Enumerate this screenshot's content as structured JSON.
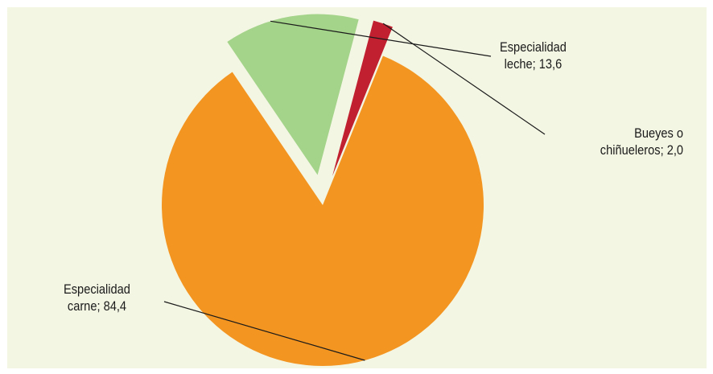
{
  "chart_data": {
    "type": "pie",
    "series": [
      {
        "values": [
          84.4,
          13.6,
          2.0
        ],
        "categories": [
          "Especialidad carne",
          "Especialidad leche",
          "Bueyes o chiñueleros"
        ]
      }
    ],
    "labels": [
      {
        "line1": "Especialidad",
        "line2": "carne;  84,4"
      },
      {
        "line1": "Especialidad",
        "line2": "leche;  13,6"
      },
      {
        "line1": "Bueyes o",
        "line2": "chiñueleros;   2,0"
      }
    ],
    "colors": [
      "#f39521",
      "#a4d38a",
      "#c0202f"
    ],
    "exploded": [
      "Especialidad leche",
      "Bueyes o chiñueleros"
    ],
    "start_angle_deg": 22,
    "legend": "none",
    "title": ""
  }
}
